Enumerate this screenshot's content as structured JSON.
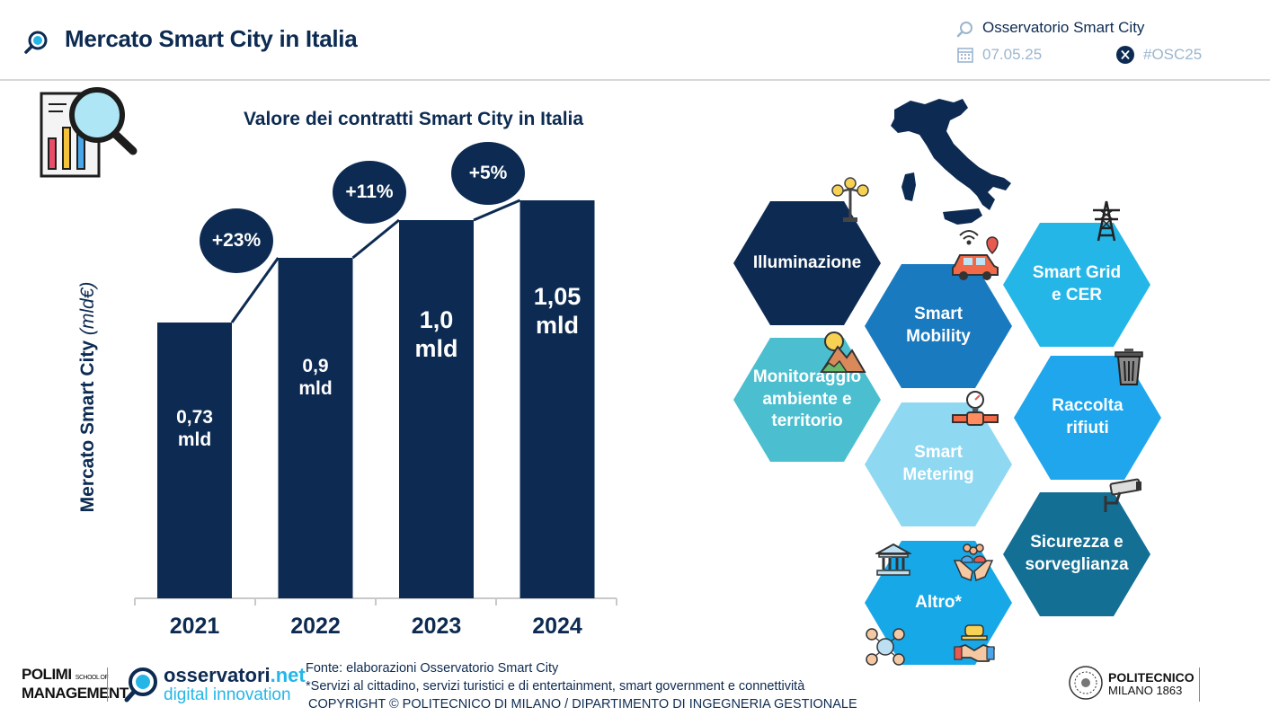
{
  "header": {
    "title": "Mercato Smart City in Italia",
    "observatory": "Osservatorio Smart City",
    "date": "07.05.25",
    "hashtag": "#OSC25"
  },
  "chart_data": {
    "type": "bar",
    "title": "Valore dei contratti Smart City in Italia",
    "ylabel_main": "Mercato Smart City",
    "ylabel_unit": "(mld€)",
    "categories": [
      "2021",
      "2022",
      "2023",
      "2024"
    ],
    "values": [
      0.73,
      0.9,
      1.0,
      1.05
    ],
    "value_labels": [
      "0,73\nmld",
      "0,9\nmld",
      "1,0\nmld",
      "1,05\nmld"
    ],
    "growth_labels": [
      "+23%",
      "+11%",
      "+5%"
    ],
    "color": "#0d2b52",
    "ylim": [
      0.5,
      1.1
    ],
    "grid": false
  },
  "hexagons": [
    {
      "label": "Illuminazione",
      "color": "#0d2b52"
    },
    {
      "label": "Smart\nMobility",
      "color": "#1a7ac0"
    },
    {
      "label": "Smart Grid\ne CER",
      "color": "#25b6e8"
    },
    {
      "label": "Monitoraggio\nambiente e\nterritorio",
      "color": "#4bbfcf"
    },
    {
      "label": "Smart\nMetering",
      "color": "#8fd8f2"
    },
    {
      "label": "Raccolta\nrifiuti",
      "color": "#1fa6ec"
    },
    {
      "label": "Sicurezza e\nsorveglianza",
      "color": "#136f94"
    },
    {
      "label": "Altro*",
      "color": "#17a8e8"
    }
  ],
  "footer": {
    "source": "Fonte: elaborazioni Osservatorio Smart City",
    "note": "*Servizi al cittadino, servizi turistici e di entertainment, smart government e connettività",
    "copyright": "COPYRIGHT © POLITECNICO DI MILANO / DIPARTIMENTO DI INGEGNERIA GESTIONALE",
    "polimi_line1": "POLIMI",
    "polimi_school": "SCHOOL OF",
    "polimi_line2": "MANAGEMENT",
    "osservatori_top": "osservatori",
    "osservatori_net": ".net",
    "osservatori_bottom": "digital innovation",
    "politecnico_line1": "POLITECNICO",
    "politecnico_line2": "MILANO 1863"
  }
}
